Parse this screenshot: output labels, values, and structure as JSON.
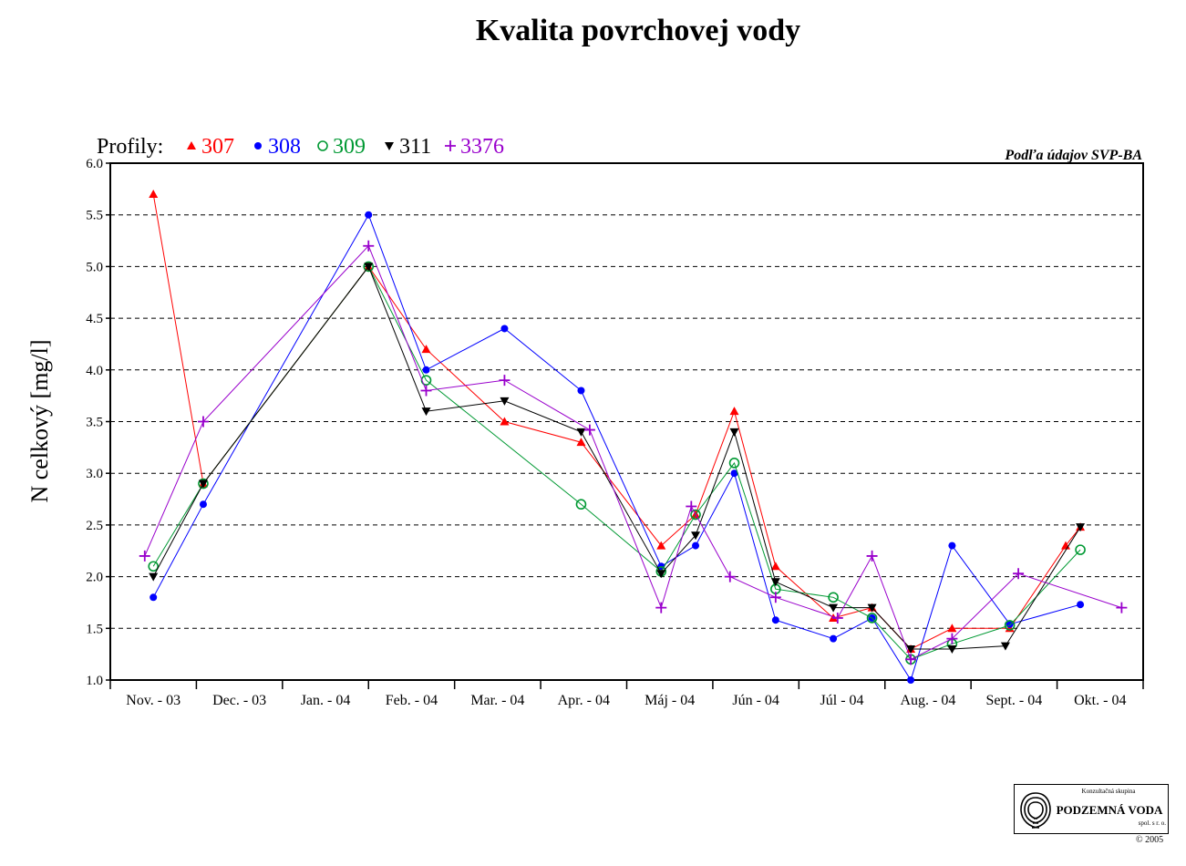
{
  "title": "Kvalita povrchovej vody",
  "source_note": "Podľa údajov SVP-BA",
  "legend_prefix": "Profily:",
  "logo": {
    "top": "Konzultačná skupina",
    "main": "PODZEMNÁ VODA",
    "sub": "spol. s r. o."
  },
  "copyright": "© 2005",
  "chart_data": {
    "type": "line",
    "ylabel": "N celkový [mg/l]",
    "xlabel": "",
    "ylim": [
      1.0,
      6.0
    ],
    "yticks": [
      "1.0",
      "1.5",
      "2.0",
      "2.5",
      "3.0",
      "3.5",
      "4.0",
      "4.5",
      "5.0",
      "5.5",
      "6.0"
    ],
    "grid": "horizontal dashed",
    "legend_position": "top-left",
    "categories": [
      "Nov. - 03",
      "Dec. - 03",
      "Jan. - 04",
      "Feb. - 04",
      "Mar. - 04",
      "Apr. - 04",
      "Máj - 04",
      "Jún - 04",
      "Júl - 04",
      "Aug. - 04",
      "Sept. - 04",
      "Okt. - 04"
    ],
    "series": [
      {
        "name": "307",
        "color": "#ff0000",
        "marker": "triangle-up",
        "points": [
          [
            0.5,
            5.7
          ],
          [
            1.08,
            2.9
          ],
          [
            3.0,
            5.0
          ],
          [
            3.67,
            4.2
          ],
          [
            4.58,
            3.5
          ],
          [
            5.47,
            3.3
          ],
          [
            6.4,
            2.3
          ],
          [
            6.8,
            2.6
          ],
          [
            7.25,
            3.6
          ],
          [
            7.73,
            2.1
          ],
          [
            8.4,
            1.6
          ],
          [
            8.85,
            1.7
          ],
          [
            9.3,
            1.3
          ],
          [
            9.78,
            1.5
          ],
          [
            10.45,
            1.5
          ],
          [
            11.1,
            2.3
          ],
          [
            11.27,
            2.48
          ]
        ]
      },
      {
        "name": "308",
        "color": "#0000ff",
        "marker": "circle",
        "points": [
          [
            0.5,
            1.8
          ],
          [
            1.08,
            2.7
          ],
          [
            3.0,
            5.5
          ],
          [
            3.67,
            4.0
          ],
          [
            4.58,
            4.4
          ],
          [
            5.47,
            3.8
          ],
          [
            6.4,
            2.1
          ],
          [
            6.8,
            2.3
          ],
          [
            7.25,
            3.0
          ],
          [
            7.73,
            1.58
          ],
          [
            8.4,
            1.4
          ],
          [
            8.85,
            1.6
          ],
          [
            9.3,
            1.0
          ],
          [
            9.78,
            2.3
          ],
          [
            10.45,
            1.54
          ],
          [
            11.27,
            1.73
          ]
        ]
      },
      {
        "name": "309",
        "color": "#009933",
        "marker": "circle-open",
        "points": [
          [
            0.5,
            2.1
          ],
          [
            1.08,
            2.9
          ],
          [
            3.0,
            5.0
          ],
          [
            3.67,
            3.9
          ],
          [
            5.47,
            2.7
          ],
          [
            6.4,
            2.05
          ],
          [
            6.8,
            2.6
          ],
          [
            7.25,
            3.1
          ],
          [
            7.73,
            1.88
          ],
          [
            8.4,
            1.8
          ],
          [
            8.85,
            1.6
          ],
          [
            9.3,
            1.2
          ],
          [
            9.78,
            1.35
          ],
          [
            10.45,
            1.53
          ],
          [
            11.27,
            2.26
          ]
        ]
      },
      {
        "name": "311",
        "color": "#000000",
        "marker": "triangle-down",
        "points": [
          [
            0.5,
            2.0
          ],
          [
            1.08,
            2.9
          ],
          [
            3.0,
            5.0
          ],
          [
            3.67,
            3.6
          ],
          [
            4.58,
            3.7
          ],
          [
            5.47,
            3.4
          ],
          [
            6.4,
            2.03
          ],
          [
            6.8,
            2.4
          ],
          [
            7.25,
            3.4
          ],
          [
            7.73,
            1.95
          ],
          [
            8.4,
            1.7
          ],
          [
            8.85,
            1.7
          ],
          [
            9.3,
            1.3
          ],
          [
            9.78,
            1.3
          ],
          [
            10.4,
            1.33
          ],
          [
            11.27,
            2.48
          ]
        ]
      },
      {
        "name": "3376",
        "color": "#9900cc",
        "marker": "plus",
        "points": [
          [
            0.4,
            2.2
          ],
          [
            1.08,
            3.5
          ],
          [
            3.0,
            5.2
          ],
          [
            3.67,
            3.8
          ],
          [
            4.58,
            3.9
          ],
          [
            5.57,
            3.42
          ],
          [
            6.4,
            1.7
          ],
          [
            6.75,
            2.68
          ],
          [
            7.2,
            2.0
          ],
          [
            7.73,
            1.8
          ],
          [
            8.45,
            1.6
          ],
          [
            8.85,
            2.2
          ],
          [
            9.3,
            1.2
          ],
          [
            9.78,
            1.4
          ],
          [
            10.55,
            2.03
          ],
          [
            11.75,
            1.7
          ]
        ]
      }
    ]
  }
}
